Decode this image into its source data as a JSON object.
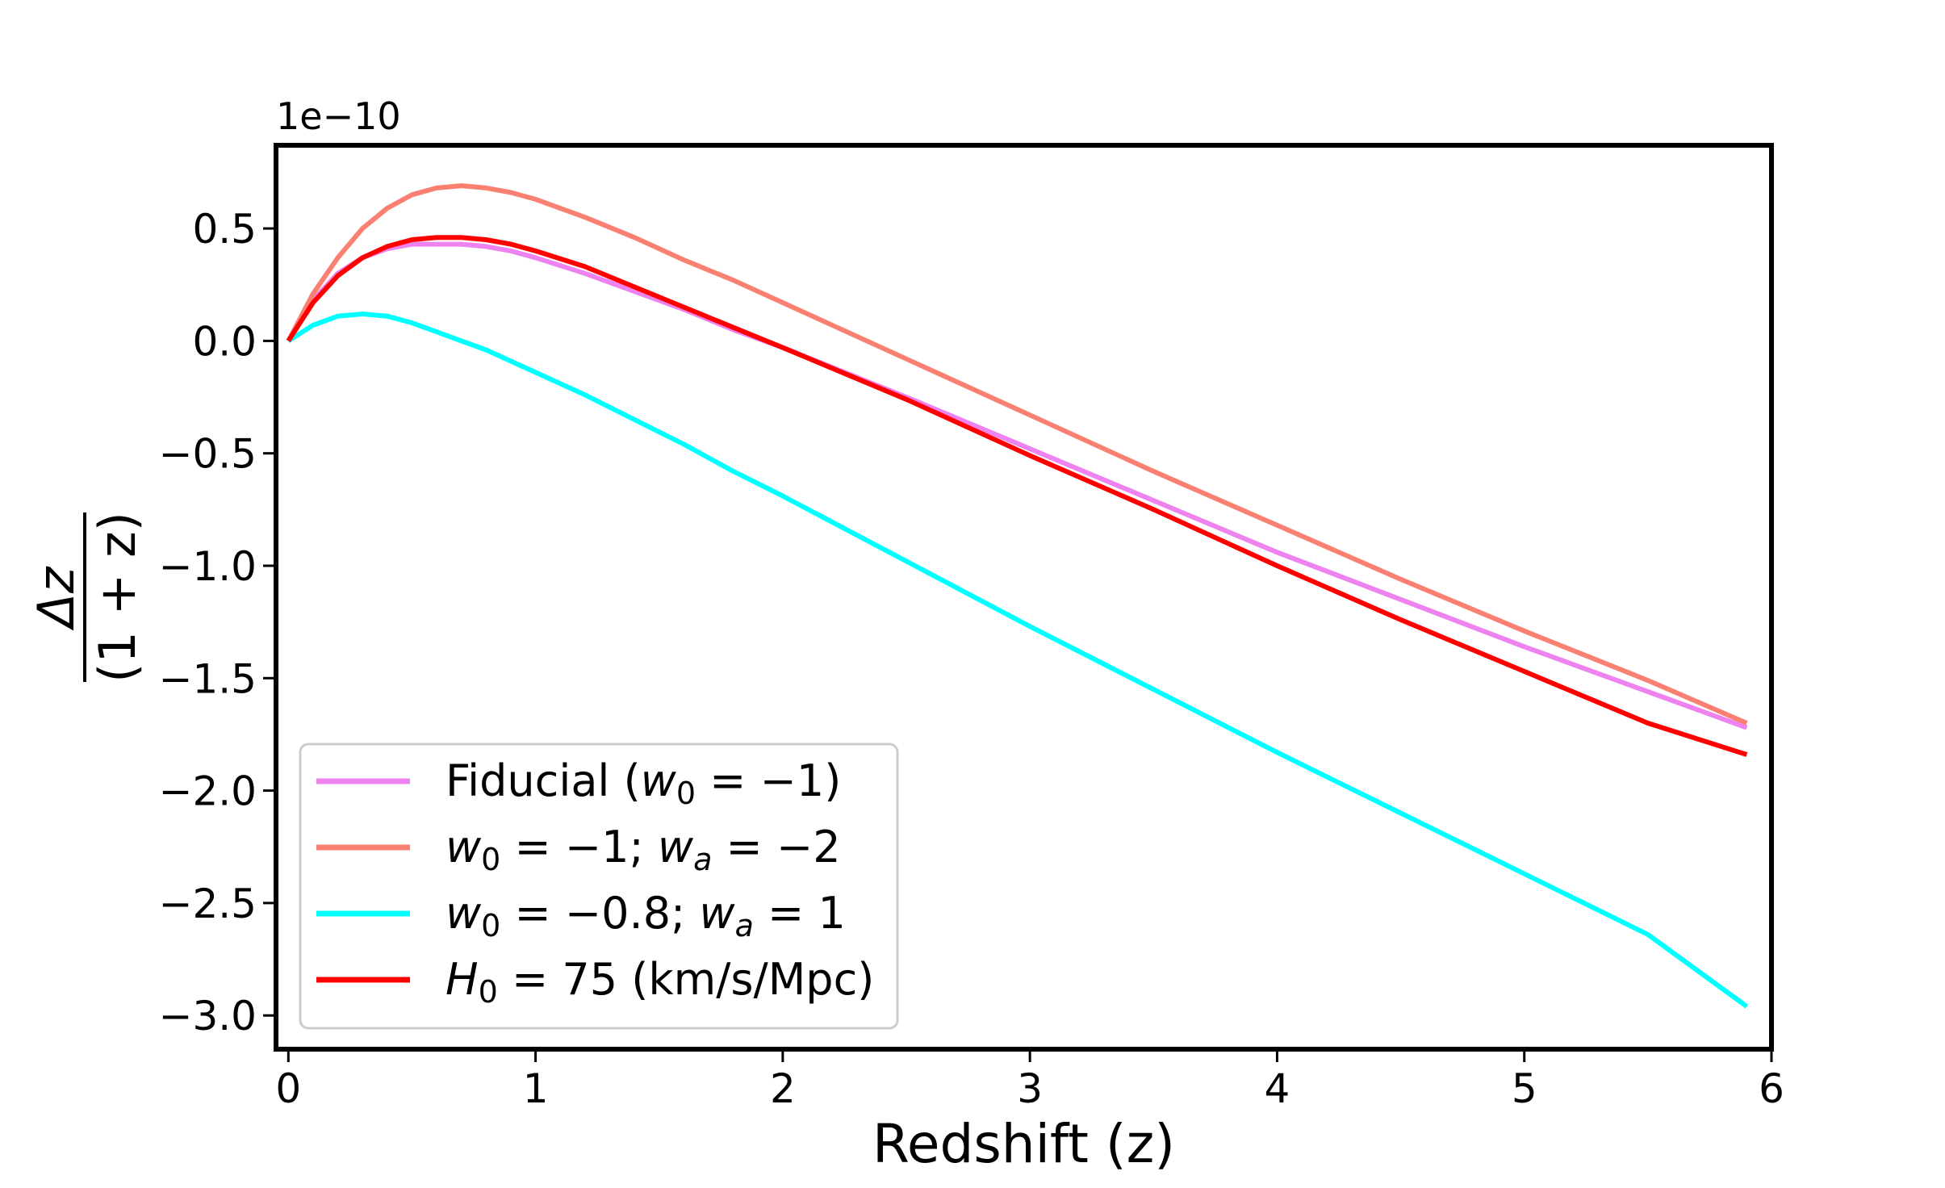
{
  "chart_data": {
    "type": "line",
    "title": "",
    "xlabel": "Redshift (z)",
    "ylabel": "Δz / (1 + z)",
    "ylabel_numerator": "Δz",
    "ylabel_denominator": "(1 + z)",
    "y_offset_text": "1e−10",
    "xlim": [
      -0.05,
      6.0
    ],
    "ylim": [
      -3.15,
      0.87
    ],
    "xticks": [
      0,
      1,
      2,
      3,
      4,
      5,
      6
    ],
    "yticks": [
      0.5,
      0.0,
      -0.5,
      -1.0,
      -1.5,
      -2.0,
      -2.5,
      -3.0
    ],
    "ytick_labels": [
      "0.5",
      "0.0",
      "−0.5",
      "−1.0",
      "−1.5",
      "−2.0",
      "−2.5",
      "−3.0"
    ],
    "grid": false,
    "legend_position": "lower-left",
    "x": [
      0,
      0.1,
      0.2,
      0.3,
      0.4,
      0.5,
      0.6,
      0.7,
      0.8,
      0.9,
      1.0,
      1.2,
      1.4,
      1.6,
      1.8,
      2.0,
      2.5,
      3.0,
      3.5,
      4.0,
      4.5,
      5.0,
      5.5,
      5.9
    ],
    "series": [
      {
        "name": "Fiducial (w0 = −1)",
        "legend_main": "Fiducial (",
        "legend_sym": "w",
        "legend_sub": "0",
        "legend_rest": " = −1)",
        "color": "#ee82ee",
        "values": [
          0,
          0.18,
          0.3,
          0.37,
          0.41,
          0.43,
          0.43,
          0.43,
          0.42,
          0.4,
          0.37,
          0.3,
          0.22,
          0.14,
          0.05,
          -0.03,
          -0.25,
          -0.48,
          -0.71,
          -0.94,
          -1.15,
          -1.36,
          -1.56,
          -1.72
        ]
      },
      {
        "name": "w0 = −1; wa = −2",
        "legend_main": "",
        "legend_sym": "w",
        "legend_sub": "0",
        "legend_rest": " = −1; ",
        "legend_sym2": "w",
        "legend_sub2": "a",
        "legend_rest2": " = −2",
        "color": "#fa8072",
        "values": [
          0,
          0.21,
          0.37,
          0.5,
          0.59,
          0.65,
          0.68,
          0.69,
          0.68,
          0.66,
          0.63,
          0.55,
          0.46,
          0.36,
          0.27,
          0.17,
          -0.08,
          -0.33,
          -0.58,
          -0.82,
          -1.06,
          -1.29,
          -1.51,
          -1.7
        ]
      },
      {
        "name": "w0 = −0.8; wa = 1",
        "legend_main": "",
        "legend_sym": "w",
        "legend_sub": "0",
        "legend_rest": " = −0.8; ",
        "legend_sym2": "w",
        "legend_sub2": "a",
        "legend_rest2": " = 1",
        "color": "#00ffff",
        "values": [
          0,
          0.07,
          0.11,
          0.12,
          0.11,
          0.08,
          0.04,
          0.0,
          -0.04,
          -0.09,
          -0.14,
          -0.24,
          -0.35,
          -0.46,
          -0.58,
          -0.69,
          -0.98,
          -1.27,
          -1.55,
          -1.83,
          -2.1,
          -2.37,
          -2.64,
          -2.96
        ]
      },
      {
        "name": "H0 = 75 (km/s/Mpc)",
        "legend_main": "",
        "legend_sym": "H",
        "legend_sub": "0",
        "legend_rest": " = 75 (km/s/Mpc)",
        "color": "#ff0000",
        "values": [
          0,
          0.17,
          0.29,
          0.37,
          0.42,
          0.45,
          0.46,
          0.46,
          0.45,
          0.43,
          0.4,
          0.33,
          0.24,
          0.15,
          0.06,
          -0.03,
          -0.26,
          -0.51,
          -0.75,
          -1.0,
          -1.24,
          -1.47,
          -1.7,
          -1.84
        ]
      }
    ]
  }
}
